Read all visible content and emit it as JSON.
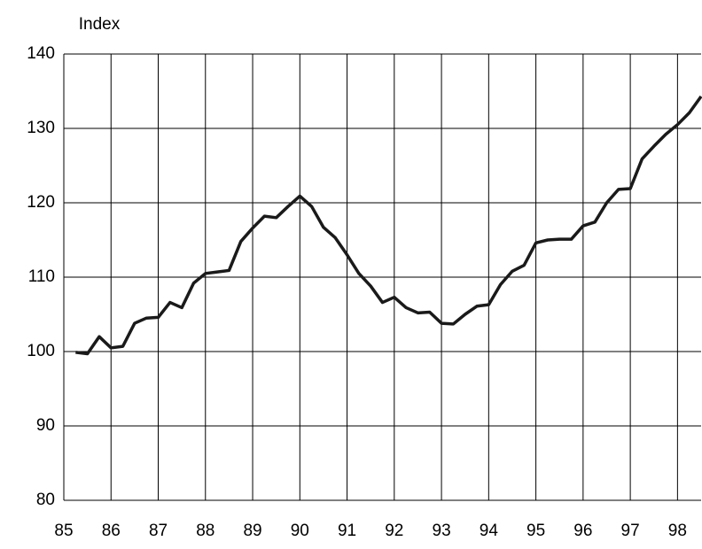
{
  "chart_data": {
    "type": "line",
    "y_label": "Index",
    "x": [
      85.25,
      85.5,
      85.75,
      86,
      86.25,
      86.5,
      86.75,
      87,
      87.25,
      87.5,
      87.75,
      88,
      88.25,
      88.5,
      88.75,
      89,
      89.25,
      89.5,
      89.75,
      90,
      90.25,
      90.5,
      90.75,
      91,
      91.25,
      91.5,
      91.75,
      92,
      92.25,
      92.5,
      92.75,
      93,
      93.25,
      93.5,
      93.75,
      94,
      94.25,
      94.5,
      94.75,
      95,
      95.25,
      95.5,
      95.75,
      96,
      96.25,
      96.5,
      96.75,
      97,
      97.25,
      97.5,
      97.75,
      98,
      98.25,
      98.5
    ],
    "series": [
      {
        "color": "#1a1a1a",
        "values": [
          99.9,
          99.7,
          102.0,
          100.5,
          100.7,
          103.8,
          104.5,
          104.6,
          106.6,
          105.9,
          109.2,
          110.5,
          110.7,
          110.9,
          114.8,
          116.6,
          118.2,
          118.0,
          119.5,
          120.9,
          119.5,
          116.7,
          115.3,
          113.0,
          110.5,
          108.8,
          106.6,
          107.3,
          105.9,
          105.2,
          105.3,
          103.8,
          103.7,
          105.0,
          106.1,
          106.3,
          109.0,
          110.8,
          111.6,
          114.6,
          115.0,
          115.1,
          115.1,
          116.9,
          117.4,
          120.0,
          121.8,
          121.9,
          125.9,
          127.6,
          129.2,
          130.5,
          132.1,
          134.3
        ]
      }
    ],
    "xlim": [
      85,
      98.5
    ],
    "xticks": [
      85,
      86,
      87,
      88,
      89,
      90,
      91,
      92,
      93,
      94,
      95,
      96,
      97,
      98
    ],
    "ylim": [
      80,
      140
    ],
    "yticks": [
      80,
      90,
      100,
      110,
      120,
      130,
      140
    ],
    "grid": true
  }
}
